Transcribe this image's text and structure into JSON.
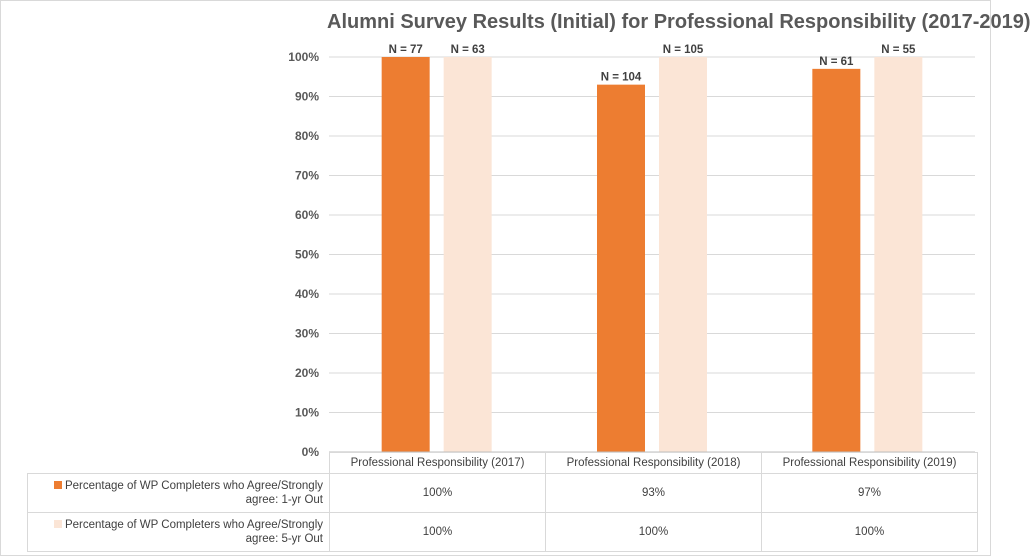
{
  "chart_data": {
    "type": "bar",
    "title": "Alumni Survey Results (Initial) for Professional Responsibility (2017-2019)",
    "categories": [
      "Professional Responsibility (2017)",
      "Professional Responsibility (2018)",
      "Professional Responsibility (2019)"
    ],
    "series": [
      {
        "name": "Percentage of WP Completers who Agree/Strongly agree: 1-yr Out",
        "color": "#ed7d31",
        "values": [
          100,
          93,
          97
        ],
        "value_labels": [
          "100%",
          "93%",
          "97%"
        ],
        "n_labels": [
          "N = 77",
          "N = 104",
          "N = 61"
        ]
      },
      {
        "name": "Percentage of WP Completers who Agree/Strongly agree: 5-yr Out",
        "color": "#fbe5d6",
        "values": [
          100,
          100,
          100
        ],
        "value_labels": [
          "100%",
          "100%",
          "100%"
        ],
        "n_labels": [
          "N = 63",
          "N = 105",
          "N = 55"
        ]
      }
    ],
    "ylim": [
      0,
      100
    ],
    "y_ticks": [
      "0%",
      "10%",
      "20%",
      "30%",
      "40%",
      "50%",
      "60%",
      "70%",
      "80%",
      "90%",
      "100%"
    ],
    "grid": true,
    "legend": "data table below plot"
  }
}
